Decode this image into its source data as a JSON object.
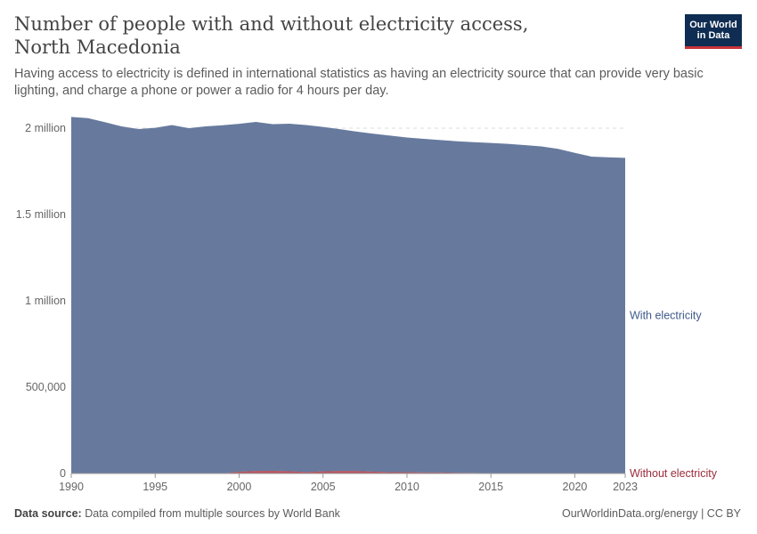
{
  "header": {
    "title": "Number of people with and without electricity access, North Macedonia",
    "subtitle": "Having access to electricity is defined in international statistics as having an electricity source that can provide very basic lighting, and charge a phone or power a radio for 4 hours per day.",
    "logo_line1": "Our World",
    "logo_line2": "in Data"
  },
  "footer": {
    "source_label": "Data source:",
    "source_text": "Data compiled from multiple sources by World Bank",
    "link": "OurWorldinData.org/energy | CC BY"
  },
  "colors": {
    "with": "#677a9e",
    "without": "#b7505b",
    "with_label": "#3e5a8a",
    "without_label": "#9c2b3a"
  },
  "chart_data": {
    "type": "area",
    "stacked": true,
    "x": [
      1990,
      1991,
      1992,
      1993,
      1994,
      1995,
      1996,
      1997,
      1998,
      1999,
      2000,
      2001,
      2002,
      2003,
      2004,
      2005,
      2006,
      2007,
      2008,
      2009,
      2010,
      2011,
      2012,
      2013,
      2014,
      2015,
      2016,
      2017,
      2018,
      2019,
      2020,
      2021,
      2022,
      2023
    ],
    "series": [
      {
        "name": "Without electricity",
        "values": [
          0,
          0,
          0,
          0,
          0,
          0,
          0,
          0,
          0,
          0,
          10000,
          14000,
          15000,
          13000,
          8000,
          12000,
          14000,
          14000,
          10000,
          8000,
          8000,
          6000,
          6000,
          4000,
          3000,
          2000,
          2000,
          1000,
          1000,
          0,
          0,
          0,
          0,
          0
        ]
      },
      {
        "name": "With electricity",
        "values": [
          2065000,
          2058000,
          2035000,
          2010000,
          1995000,
          2002000,
          2018000,
          2000000,
          2010000,
          2017000,
          2015000,
          2022000,
          2008000,
          2013000,
          2010000,
          1995000,
          1980000,
          1966000,
          1958000,
          1949000,
          1938000,
          1932000,
          1925000,
          1920000,
          1916000,
          1912000,
          1907000,
          1901000,
          1893000,
          1880000,
          1857000,
          1835000,
          1831000,
          1828000
        ]
      }
    ],
    "ylim": [
      0,
      2000000
    ],
    "yticks": [
      0,
      500000,
      1000000,
      1500000,
      2000000
    ],
    "ytick_labels": [
      "0",
      "500,000",
      "1 million",
      "1.5 million",
      "2 million"
    ],
    "xticks": [
      1990,
      1995,
      2000,
      2005,
      2010,
      2015,
      2020,
      2023
    ],
    "grid": true
  }
}
